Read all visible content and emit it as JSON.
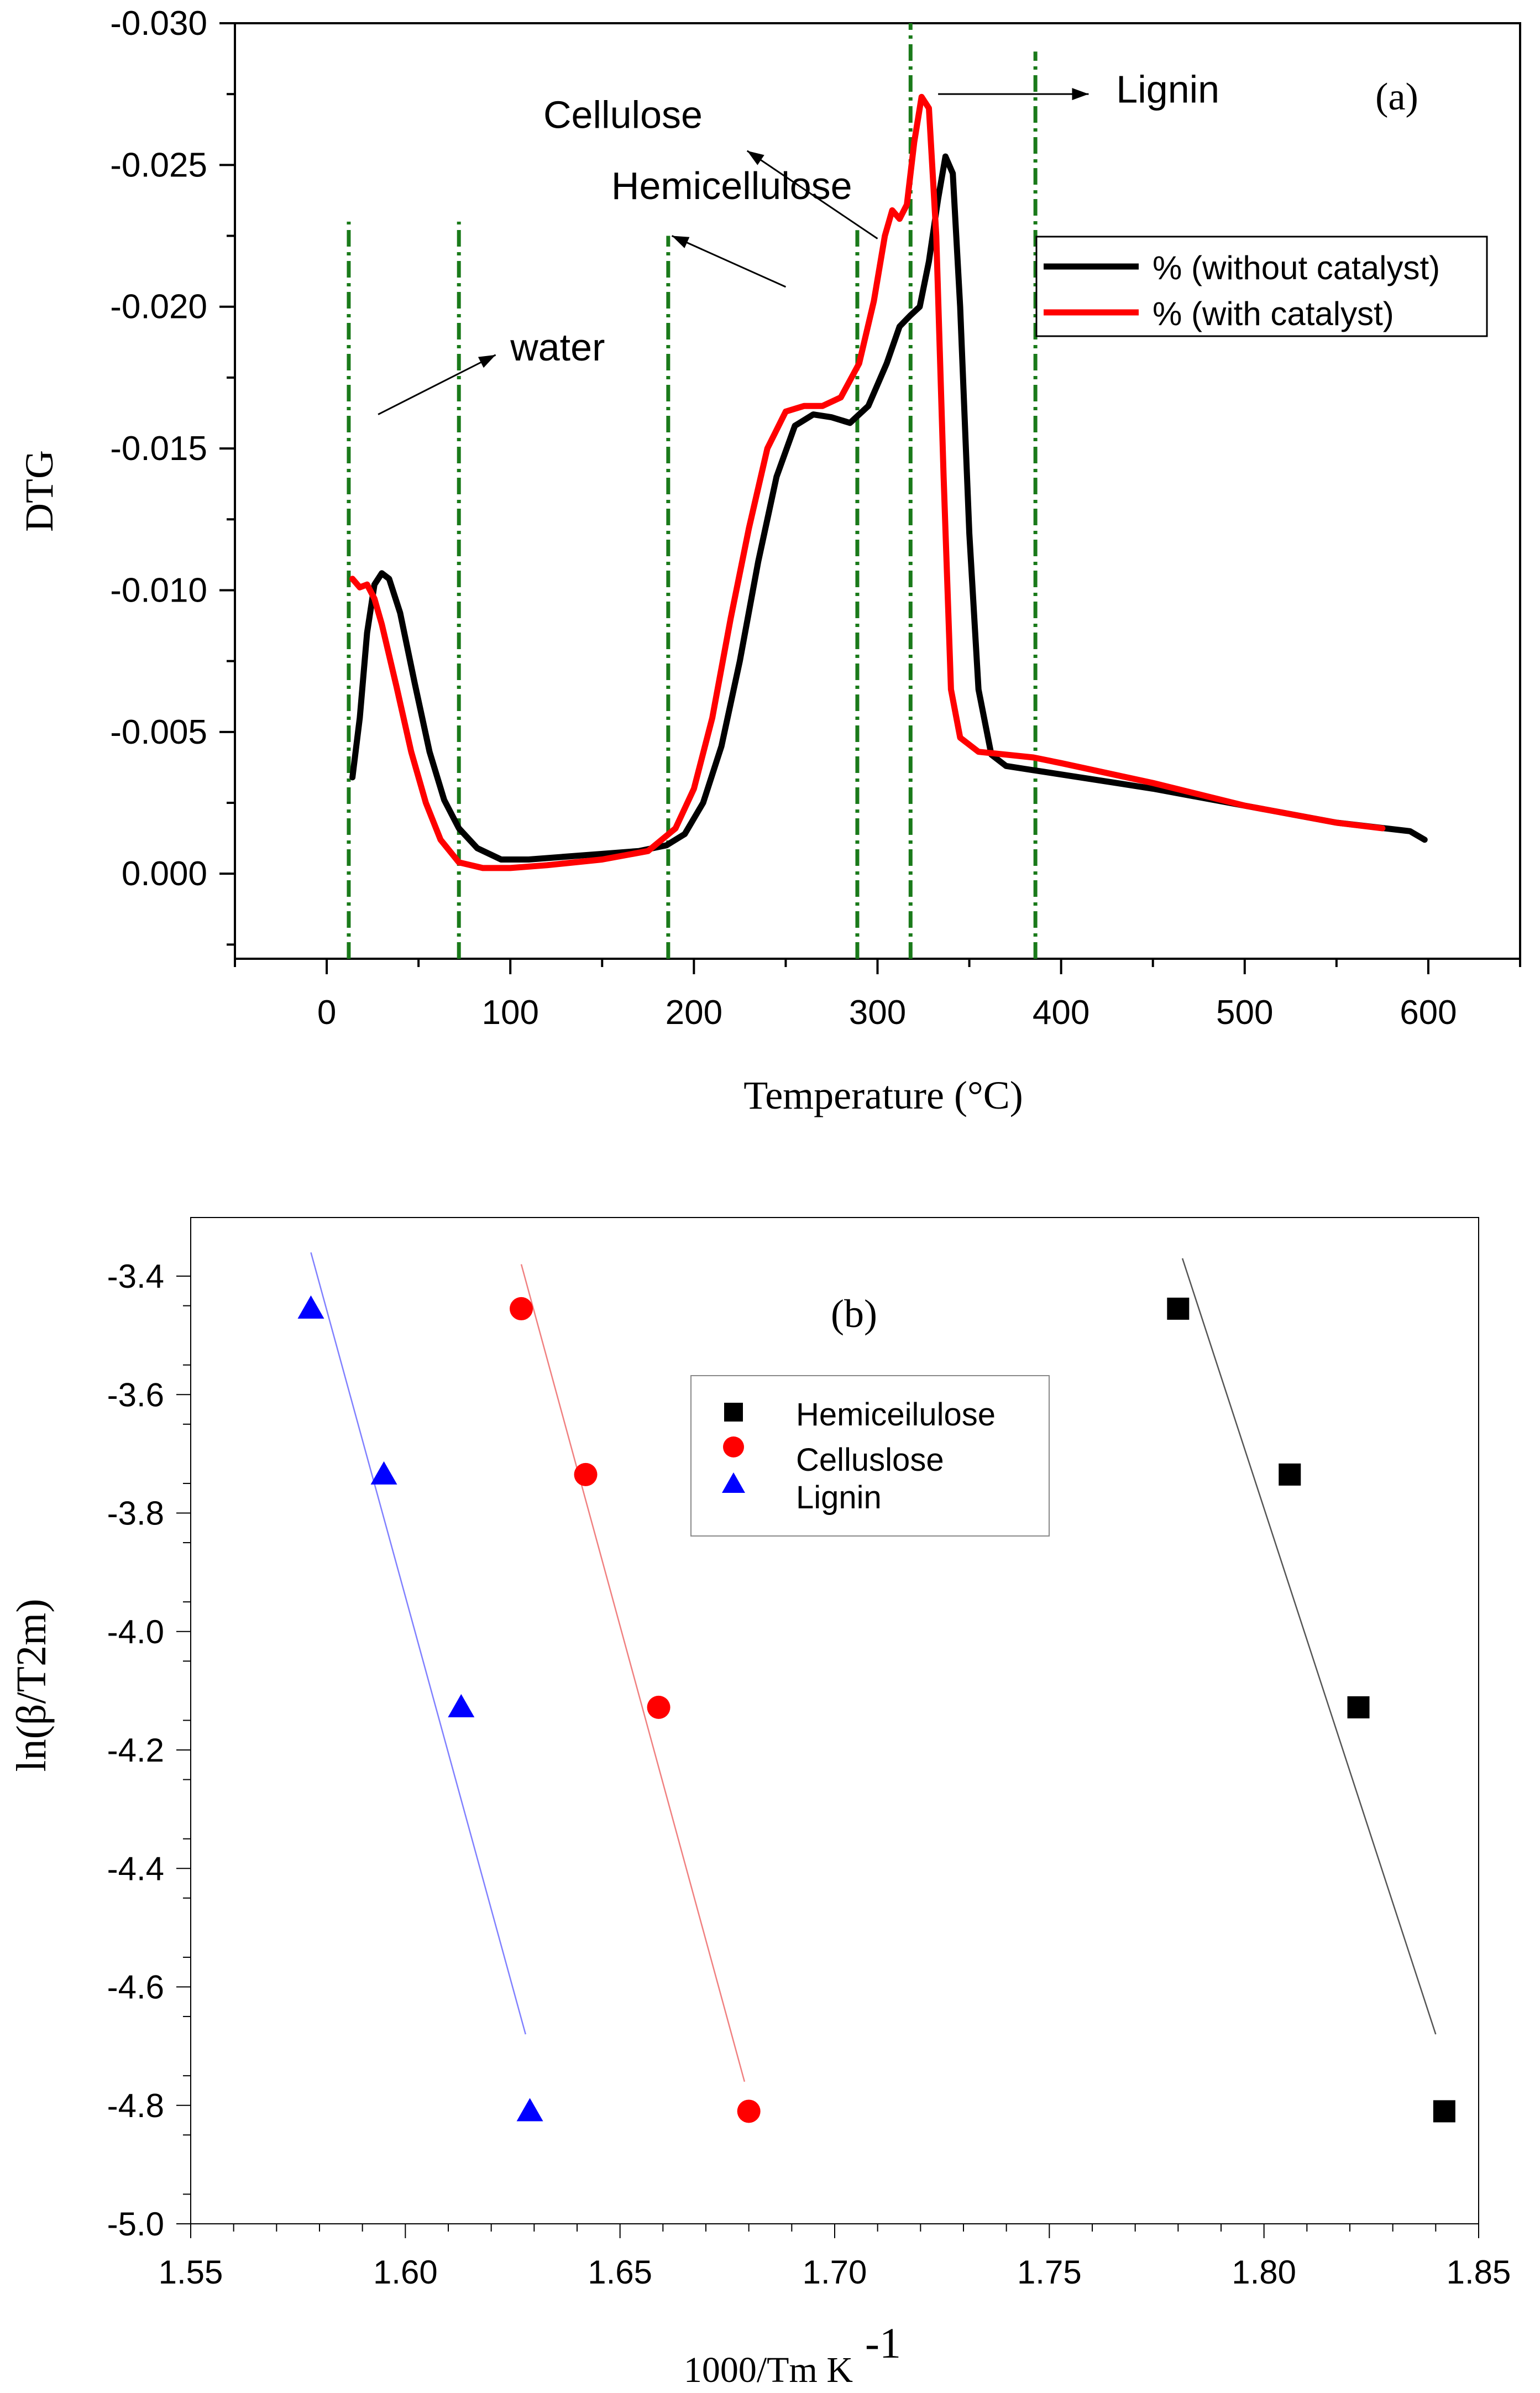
{
  "chart_data": [
    {
      "panel_label": "(a)",
      "type": "line",
      "xlabel": "Temperature (°C)",
      "ylabel": "DTG",
      "xlim": [
        -50,
        650
      ],
      "ylim": [
        0.003,
        -0.03
      ],
      "x_ticks": [
        0,
        100,
        200,
        300,
        400,
        500,
        600
      ],
      "x_tick_labels": [
        "0",
        "100",
        "200",
        "300",
        "400",
        "500",
        "600"
      ],
      "y_ticks": [
        0.0,
        -0.005,
        -0.01,
        -0.015,
        -0.02,
        -0.025,
        -0.03
      ],
      "y_tick_labels": [
        "0.000",
        "-0.005",
        "-0.010",
        "-0.015",
        "-0.020",
        "-0.025",
        "-0.030"
      ],
      "legend": {
        "placement": "top-right",
        "entries": [
          "% (without catalyst)",
          "% (with catalyst)"
        ]
      },
      "series": [
        {
          "name": "% (without catalyst)",
          "color": "#000000",
          "points": [
            [
              14,
              -0.0034
            ],
            [
              18,
              -0.0055
            ],
            [
              22,
              -0.0085
            ],
            [
              26,
              -0.0102
            ],
            [
              30,
              -0.0106
            ],
            [
              34,
              -0.0104
            ],
            [
              40,
              -0.0092
            ],
            [
              48,
              -0.0067
            ],
            [
              56,
              -0.0043
            ],
            [
              64,
              -0.0026
            ],
            [
              72,
              -0.0016
            ],
            [
              82,
              -0.0009
            ],
            [
              95,
              -0.0005
            ],
            [
              110,
              -0.0005
            ],
            [
              130,
              -0.0006
            ],
            [
              150,
              -0.0007
            ],
            [
              170,
              -0.0008
            ],
            [
              185,
              -0.001
            ],
            [
              195,
              -0.0014
            ],
            [
              205,
              -0.0025
            ],
            [
              215,
              -0.0045
            ],
            [
              225,
              -0.0075
            ],
            [
              235,
              -0.011
            ],
            [
              245,
              -0.014
            ],
            [
              255,
              -0.0158
            ],
            [
              265,
              -0.0162
            ],
            [
              275,
              -0.0161
            ],
            [
              285,
              -0.0159
            ],
            [
              295,
              -0.0165
            ],
            [
              305,
              -0.018
            ],
            [
              312,
              -0.0193
            ],
            [
              318,
              -0.0197
            ],
            [
              323,
              -0.02
            ],
            [
              328,
              -0.0216
            ],
            [
              333,
              -0.0238
            ],
            [
              337,
              -0.0253
            ],
            [
              341,
              -0.0247
            ],
            [
              345,
              -0.02
            ],
            [
              350,
              -0.012
            ],
            [
              355,
              -0.0065
            ],
            [
              362,
              -0.0042
            ],
            [
              370,
              -0.0038
            ],
            [
              380,
              -0.0037
            ],
            [
              390,
              -0.0036
            ],
            [
              400,
              -0.0035
            ],
            [
              450,
              -0.003
            ],
            [
              500,
              -0.0024
            ],
            [
              550,
              -0.0018
            ],
            [
              590,
              -0.0015
            ],
            [
              598,
              -0.0012
            ]
          ]
        },
        {
          "name": "% (with catalyst)",
          "color": "#ff0000",
          "points": [
            [
              14,
              -0.0104
            ],
            [
              18,
              -0.0101
            ],
            [
              22,
              -0.0102
            ],
            [
              26,
              -0.0097
            ],
            [
              30,
              -0.0088
            ],
            [
              38,
              -0.0066
            ],
            [
              46,
              -0.0043
            ],
            [
              54,
              -0.0025
            ],
            [
              62,
              -0.0012
            ],
            [
              72,
              -0.0004
            ],
            [
              85,
              -0.0002
            ],
            [
              100,
              -0.0002
            ],
            [
              120,
              -0.0003
            ],
            [
              150,
              -0.0005
            ],
            [
              175,
              -0.0008
            ],
            [
              190,
              -0.0016
            ],
            [
              200,
              -0.003
            ],
            [
              210,
              -0.0055
            ],
            [
              220,
              -0.009
            ],
            [
              230,
              -0.0122
            ],
            [
              240,
              -0.015
            ],
            [
              250,
              -0.0163
            ],
            [
              260,
              -0.0165
            ],
            [
              270,
              -0.0165
            ],
            [
              280,
              -0.0168
            ],
            [
              290,
              -0.018
            ],
            [
              298,
              -0.0202
            ],
            [
              304,
              -0.0225
            ],
            [
              308,
              -0.0234
            ],
            [
              312,
              -0.0231
            ],
            [
              316,
              -0.0236
            ],
            [
              320,
              -0.0258
            ],
            [
              324,
              -0.0274
            ],
            [
              328,
              -0.027
            ],
            [
              332,
              -0.0225
            ],
            [
              336,
              -0.014
            ],
            [
              340,
              -0.0065
            ],
            [
              345,
              -0.0048
            ],
            [
              355,
              -0.0043
            ],
            [
              370,
              -0.0042
            ],
            [
              385,
              -0.0041
            ],
            [
              400,
              -0.0039
            ],
            [
              450,
              -0.0032
            ],
            [
              500,
              -0.0024
            ],
            [
              550,
              -0.0018
            ],
            [
              575,
              -0.0016
            ]
          ]
        }
      ],
      "reference_lines": {
        "color": "#1a7a1a",
        "style": "dash-dot",
        "lines": [
          {
            "x": 12,
            "y_top": -0.023
          },
          {
            "x": 72,
            "y_top": -0.023
          },
          {
            "x": 186,
            "y_top": -0.0225
          },
          {
            "x": 289,
            "y_top": -0.0227
          },
          {
            "x": 318,
            "y_top": -0.03
          },
          {
            "x": 386,
            "y_top": -0.029
          }
        ]
      },
      "annotations": [
        {
          "text": "water",
          "x": 100,
          "y": -0.0181,
          "arrow_from": [
            28,
            -0.0162
          ],
          "arrow_to": [
            92,
            -0.0183
          ]
        },
        {
          "text": "Hemicellulose",
          "x": 155,
          "y": -0.0238,
          "arrow_from": [
            250,
            -0.0207
          ],
          "arrow_to": [
            188,
            -0.0225
          ]
        },
        {
          "text": "Cellulose",
          "x": 118,
          "y": -0.0263,
          "arrow_from": [
            300,
            -0.0224
          ],
          "arrow_to": [
            229,
            -0.0255
          ]
        },
        {
          "text": "Lignin",
          "x": 430,
          "y": -0.0272,
          "arrow_from": [
            333,
            -0.0275
          ],
          "arrow_to": [
            415,
            -0.0275
          ]
        }
      ]
    },
    {
      "panel_label": "(b)",
      "type": "scatter",
      "xlabel": "1000/Tm K",
      "xlabel_superscript": "-1",
      "ylabel": "ln(β/T2m)",
      "xlim": [
        1.55,
        1.85
      ],
      "ylim": [
        -5.0,
        -3.35
      ],
      "x_ticks": [
        1.55,
        1.6,
        1.65,
        1.7,
        1.75,
        1.8,
        1.85
      ],
      "x_tick_labels": [
        "1.55",
        "1.60",
        "1.65",
        "1.70",
        "1.75",
        "1.80",
        "1.85"
      ],
      "y_ticks": [
        -5.0,
        -4.8,
        -4.6,
        -4.4,
        -4.2,
        -4.0,
        -3.8,
        -3.6,
        -3.4
      ],
      "y_tick_labels": [
        "-5.0",
        "-4.8",
        "-4.6",
        "-4.4",
        "-4.2",
        "-4.0",
        "-3.8",
        "-3.6",
        "-3.4"
      ],
      "legend": {
        "placement": "upper-middle",
        "entries": [
          "Hemiceilulose",
          "Celluslose",
          "Lignin"
        ]
      },
      "series": [
        {
          "name": "Hemiceilulose",
          "marker": "square",
          "color": "#000000",
          "line_color": "#555555",
          "x": [
            1.78,
            1.806,
            1.822,
            1.842
          ],
          "y": [
            -3.455,
            -3.735,
            -4.128,
            -4.81
          ],
          "fit_line": [
            [
              1.781,
              -3.37
            ],
            [
              1.84,
              -4.68
            ]
          ]
        },
        {
          "name": "Celluslose",
          "marker": "circle",
          "color": "#ff0000",
          "line_color": "#f08080",
          "x": [
            1.627,
            1.642,
            1.659,
            1.68
          ],
          "y": [
            -3.455,
            -3.735,
            -4.128,
            -4.81
          ],
          "fit_line": [
            [
              1.627,
              -3.38
            ],
            [
              1.679,
              -4.76
            ]
          ]
        },
        {
          "name": "Lignin",
          "marker": "triangle",
          "color": "#0000ff",
          "line_color": "#8080ff",
          "x": [
            1.578,
            1.595,
            1.613,
            1.629
          ],
          "y": [
            -3.455,
            -3.735,
            -4.128,
            -4.81
          ],
          "fit_line": [
            [
              1.578,
              -3.36
            ],
            [
              1.628,
              -4.68
            ]
          ]
        }
      ]
    }
  ]
}
